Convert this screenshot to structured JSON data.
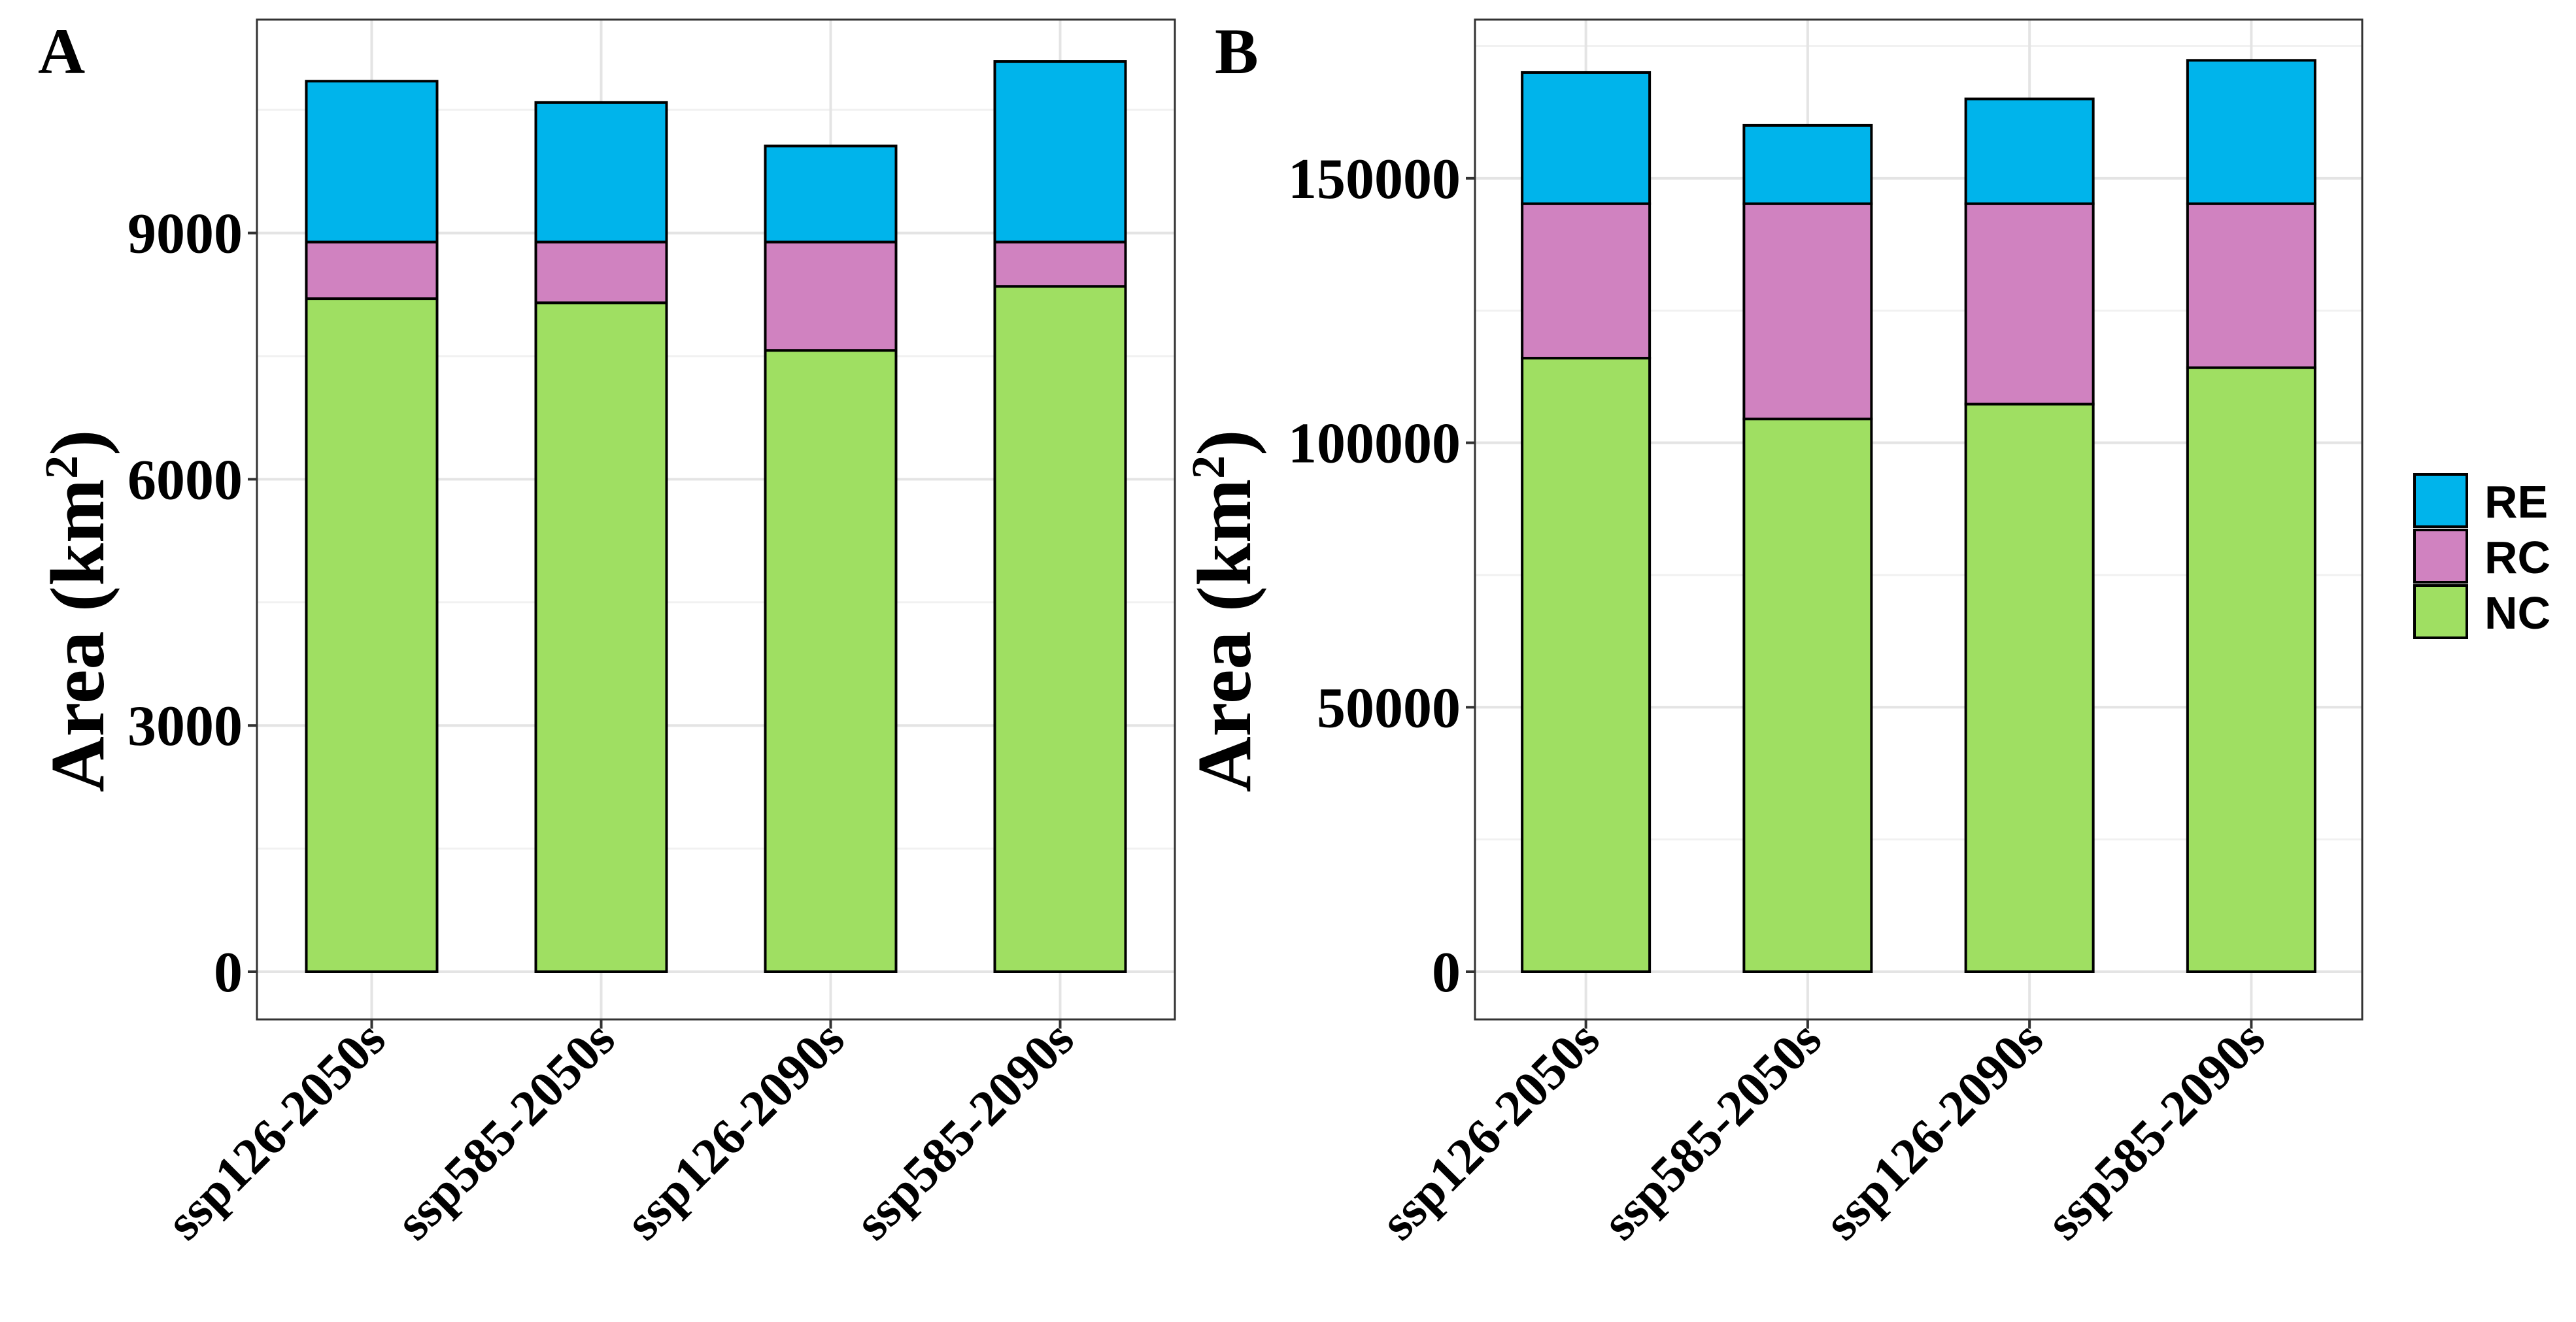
{
  "legend": {
    "entries": [
      {
        "key": "RE",
        "label": "RE",
        "color": "#00B4EB"
      },
      {
        "key": "RC",
        "label": "RC",
        "color": "#D082C0"
      },
      {
        "key": "NC",
        "label": "NC",
        "color": "#9FDF62"
      }
    ]
  },
  "chart_data": [
    {
      "type": "bar",
      "stacked": true,
      "panel_label": "A",
      "ylabel_main": "Area (km",
      "ylabel_sup": "2",
      "ylabel_close": ")",
      "xlabel": "",
      "categories": [
        "ssp126-2050s",
        "ssp585-2050s",
        "ssp126-2090s",
        "ssp585-2090s"
      ],
      "yticks": [
        0,
        3000,
        6000,
        9000
      ],
      "ylim": [
        -570,
        11600
      ],
      "grid": true,
      "series": [
        {
          "name": "NC",
          "values": [
            8200,
            8150,
            7570,
            8350
          ]
        },
        {
          "name": "RC",
          "values": [
            690,
            740,
            1320,
            540
          ]
        },
        {
          "name": "RE",
          "values": [
            1960,
            1700,
            1170,
            2200
          ]
        }
      ]
    },
    {
      "type": "bar",
      "stacked": true,
      "panel_label": "B",
      "ylabel_main": "Area (km",
      "ylabel_sup": "2",
      "ylabel_close": ")",
      "xlabel": "",
      "categories": [
        "ssp126-2050s",
        "ssp585-2050s",
        "ssp126-2090s",
        "ssp585-2090s"
      ],
      "yticks": [
        0,
        50000,
        100000,
        150000
      ],
      "ylim": [
        -9000,
        180000
      ],
      "grid": true,
      "series": [
        {
          "name": "NC",
          "values": [
            116000,
            104500,
            107300,
            114200
          ]
        },
        {
          "name": "RC",
          "values": [
            29200,
            40700,
            37900,
            31000
          ]
        },
        {
          "name": "RE",
          "values": [
            24800,
            14800,
            19800,
            27100
          ]
        }
      ]
    }
  ]
}
